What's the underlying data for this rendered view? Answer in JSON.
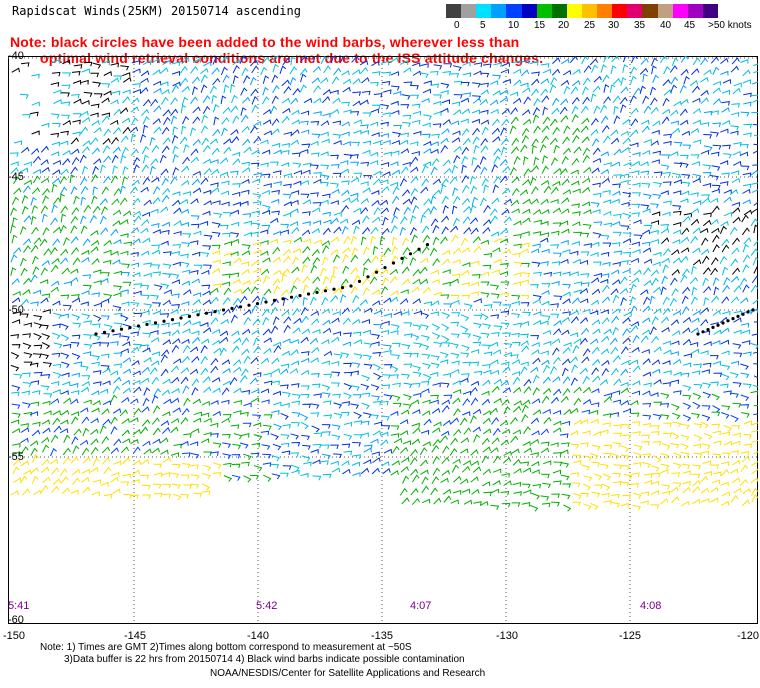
{
  "title": "Rapidscat Winds(25KM) 20150714 ascending",
  "note": {
    "line1": "Note: black circles have been added to the wind barbs, wherever less than",
    "line2": "optimal wind retrieval conditions are met due to the ISS attitude changes."
  },
  "legend": {
    "colors": [
      "#404040",
      "#a0a0a0",
      "#00e0ff",
      "#00a0ff",
      "#0040ff",
      "#0000c0",
      "#00c000",
      "#007000",
      "#ffff00",
      "#ffc000",
      "#ff8000",
      "#ff0000",
      "#e00070",
      "#804000",
      "#c0a080",
      "#ff00ff",
      "#a000c0",
      "#400080"
    ],
    "labels": [
      "0",
      "5",
      "10",
      "15",
      "20",
      "25",
      "30",
      "35",
      "40",
      "45",
      ">50 knots"
    ]
  },
  "axes": {
    "lat_labels": [
      "-40",
      "-45",
      "-50",
      "-55",
      "-60"
    ],
    "lon_labels": [
      "-150",
      "-145",
      "-140",
      "-135",
      "-130",
      "-125",
      "-120"
    ]
  },
  "times": [
    "5:41",
    "5:42",
    "4:07",
    "4:08"
  ],
  "footer": {
    "line1": "Note: 1) Times are GMT 2)Times along bottom correspond to measurement at ~50S",
    "line2": "3)Data buffer is 22 hrs from 20150714 4) Black wind barbs indicate possible contamination",
    "line3": "NOAA/NESDIS/Center for Satellite Applications and Research"
  }
}
